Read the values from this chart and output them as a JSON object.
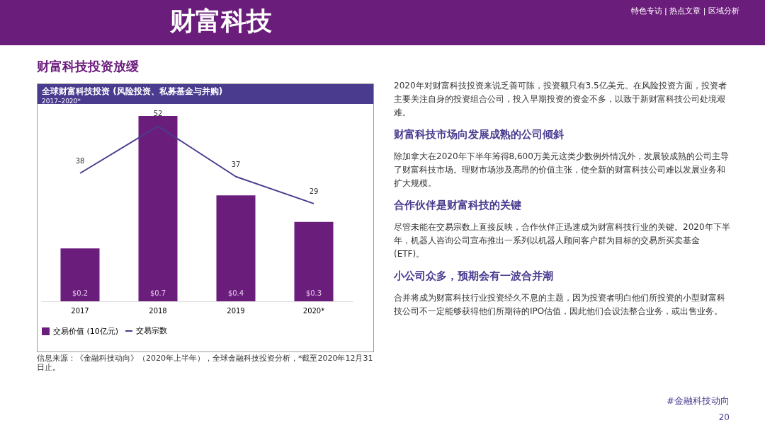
{
  "chart_data": {
    "type": "bar",
    "title": "全球财富科技投资 (风险投资、私募基金与并购)",
    "subtitle": "2017–2020*",
    "categories": [
      "2017",
      "2018",
      "2019",
      "2020*"
    ],
    "tick_labels": "x",
    "series": [
      {
        "name": "交易价值 (10亿元)",
        "color": "#6b1d7c",
        "values": [
          0.2,
          0.7,
          0.4,
          0.3
        ],
        "value_labels": [
          "$0.2",
          "$0.7",
          "$0.4",
          "$0.3"
        ]
      },
      {
        "name": "交易宗数",
        "type": "line",
        "axis": "y2",
        "color": "#4a3b8f",
        "values": [
          38,
          52,
          37,
          29
        ],
        "value_labels": [
          "38",
          "52",
          "37",
          "29"
        ]
      }
    ],
    "legend": "bottom",
    "annotations": [
      "财富科技投资放缓",
      "信息来源：《金融科技动向》（2020年上半年），全球金融科技投资分析，*截至2020年12月31日止。",
      "2020年对财富科技投资来说乏善可陈，投资额只有3.5亿美元。在风险投资方面，投资者主要关注自身的投资组合公司，投入早期投资的资金不多，以致于新财富科技公司处境艰难。",
      "财富科技市场向发展成熟的公司倾斜",
      "除加拿大在2020年下半年筹得8,600万美元这类少数例外情况外，发展较成熟的公司主导了财富科技市场。理财市场涉及高昂的价值主张，使全新的财富科技公司难以发展业务和扩大规模。",
      "合作伙伴是财富科技的关键",
      "尽管未能在交易宗数上直接反映，合作伙伴正迅速成为财富科技行业的关键。2020年下半年，机器人咨询公司宣布推出一系列以机器人顾问客户群为目标的交易所买卖基金 (ETF)。",
      "小公司众多，预期会有一波合并潮",
      "合并将成为财富科技行业投资经久不息的主题，因为投资者明白他们所投资的小型财富科技公司不一定能够获得他们所期待的IPO估值，因此他们会设法整合业务，或出售业务。",
      "财富科技",
      "特色专访 | 热点文章 | 区域分析",
      "#金融科技动向",
      "20"
    ]
  }
}
